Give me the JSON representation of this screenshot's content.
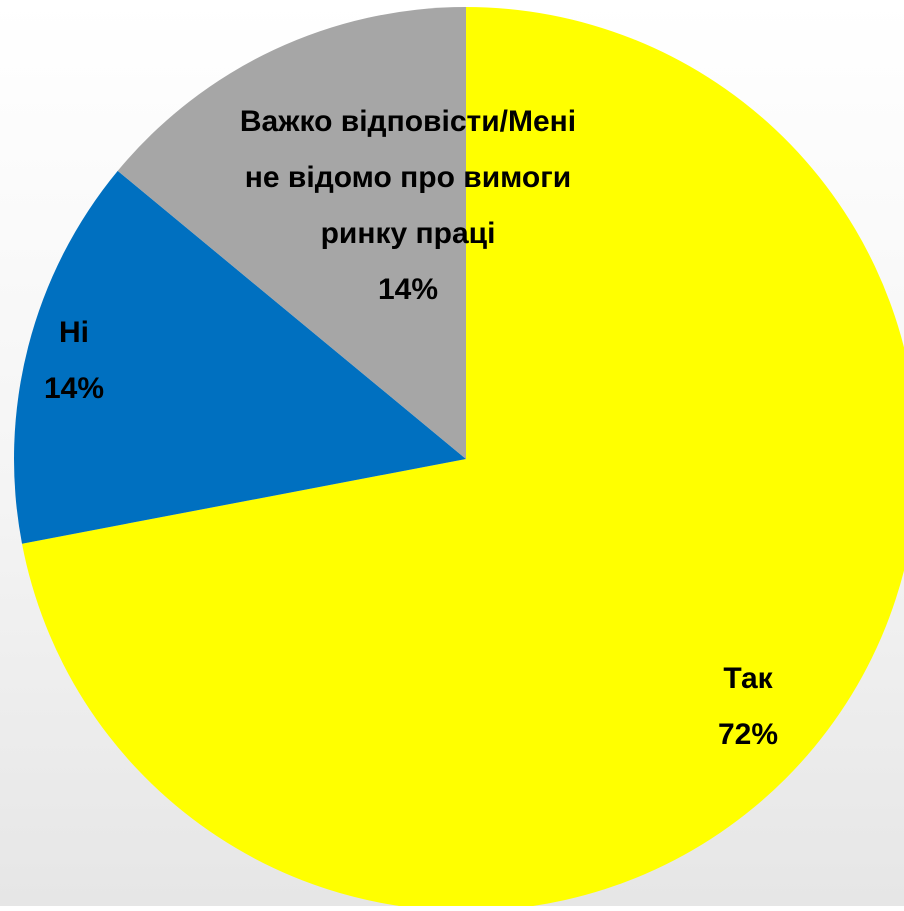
{
  "chart_data": {
    "type": "pie",
    "start_angle_deg": 0,
    "direction": "clockwise",
    "slices": [
      {
        "label": "Так",
        "value": 72,
        "value_label": "72%",
        "color": "#ffff00"
      },
      {
        "label": "Ні",
        "value": 14,
        "value_label": "14%",
        "color": "#0070c0"
      },
      {
        "label": "Важко відповісти/Мені не відомо про вимоги ринку праці",
        "value": 14,
        "value_label": "14%",
        "color": "#a6a6a6"
      }
    ],
    "label_lines": [
      [
        "Так",
        "72%"
      ],
      [
        "Ні",
        "14%"
      ],
      [
        "Важко відповісти/Мені",
        "не відомо про вимоги",
        "ринку праці",
        "14%"
      ]
    ]
  }
}
